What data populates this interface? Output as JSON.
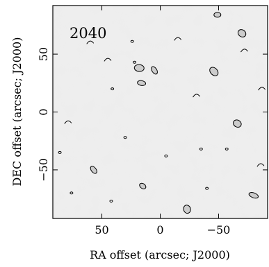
{
  "chart_data": {
    "type": "contour",
    "panel_label": "2040",
    "xlabel": "RA offset (arcsec; J2000)",
    "ylabel": "DEC offset (arcsec; J2000)",
    "x_axis_direction": "decreasing to the right",
    "xlim": [
      92,
      -92
    ],
    "ylim": [
      -92,
      92
    ],
    "x_ticks": [
      50,
      0,
      -50
    ],
    "x_tick_labels": [
      "50",
      "0",
      "−50"
    ],
    "y_ticks": [
      50,
      0,
      -50
    ],
    "y_tick_labels": [
      "50",
      "0",
      "−50"
    ],
    "grid": false,
    "colormap": "greyscale noise background",
    "contour_color": "#000000",
    "contours": [
      {
        "ra": -49,
        "dec": 84,
        "kind": "loop"
      },
      {
        "ra": -70,
        "dec": 68,
        "kind": "loop"
      },
      {
        "ra": -72,
        "dec": 53,
        "kind": "arc"
      },
      {
        "ra": -87,
        "dec": 20,
        "kind": "arc"
      },
      {
        "ra": 5,
        "dec": 36,
        "kind": "loop"
      },
      {
        "ra": 18,
        "dec": 38,
        "kind": "loop"
      },
      {
        "ra": 22,
        "dec": 43,
        "kind": "dot"
      },
      {
        "ra": 24,
        "dec": 61,
        "kind": "dot"
      },
      {
        "ra": 45,
        "dec": 45,
        "kind": "arc"
      },
      {
        "ra": 41,
        "dec": 20,
        "kind": "dot"
      },
      {
        "ra": 16,
        "dec": 25,
        "kind": "loop"
      },
      {
        "ra": -46,
        "dec": 35,
        "kind": "loop"
      },
      {
        "ra": -31,
        "dec": 14,
        "kind": "arc"
      },
      {
        "ra": -66,
        "dec": -10,
        "kind": "loop"
      },
      {
        "ra": -57,
        "dec": -32,
        "kind": "dot"
      },
      {
        "ra": -86,
        "dec": -46,
        "kind": "arc"
      },
      {
        "ra": 57,
        "dec": -50,
        "kind": "loop"
      },
      {
        "ra": 76,
        "dec": -70,
        "kind": "dot"
      },
      {
        "ra": 15,
        "dec": -64,
        "kind": "loop"
      },
      {
        "ra": -23,
        "dec": -84,
        "kind": "loop"
      },
      {
        "ra": -80,
        "dec": -72,
        "kind": "loop"
      },
      {
        "ra": 79,
        "dec": -9,
        "kind": "arc"
      },
      {
        "ra": -5,
        "dec": -38,
        "kind": "dot"
      },
      {
        "ra": -35,
        "dec": -32,
        "kind": "dot"
      },
      {
        "ra": 30,
        "dec": -22,
        "kind": "dot"
      },
      {
        "ra": 42,
        "dec": -77,
        "kind": "dot"
      },
      {
        "ra": -40,
        "dec": -66,
        "kind": "dot"
      },
      {
        "ra": 86,
        "dec": -35,
        "kind": "dot"
      },
      {
        "ra": -15,
        "dec": 63,
        "kind": "arc"
      },
      {
        "ra": 60,
        "dec": 60,
        "kind": "arc"
      }
    ]
  }
}
